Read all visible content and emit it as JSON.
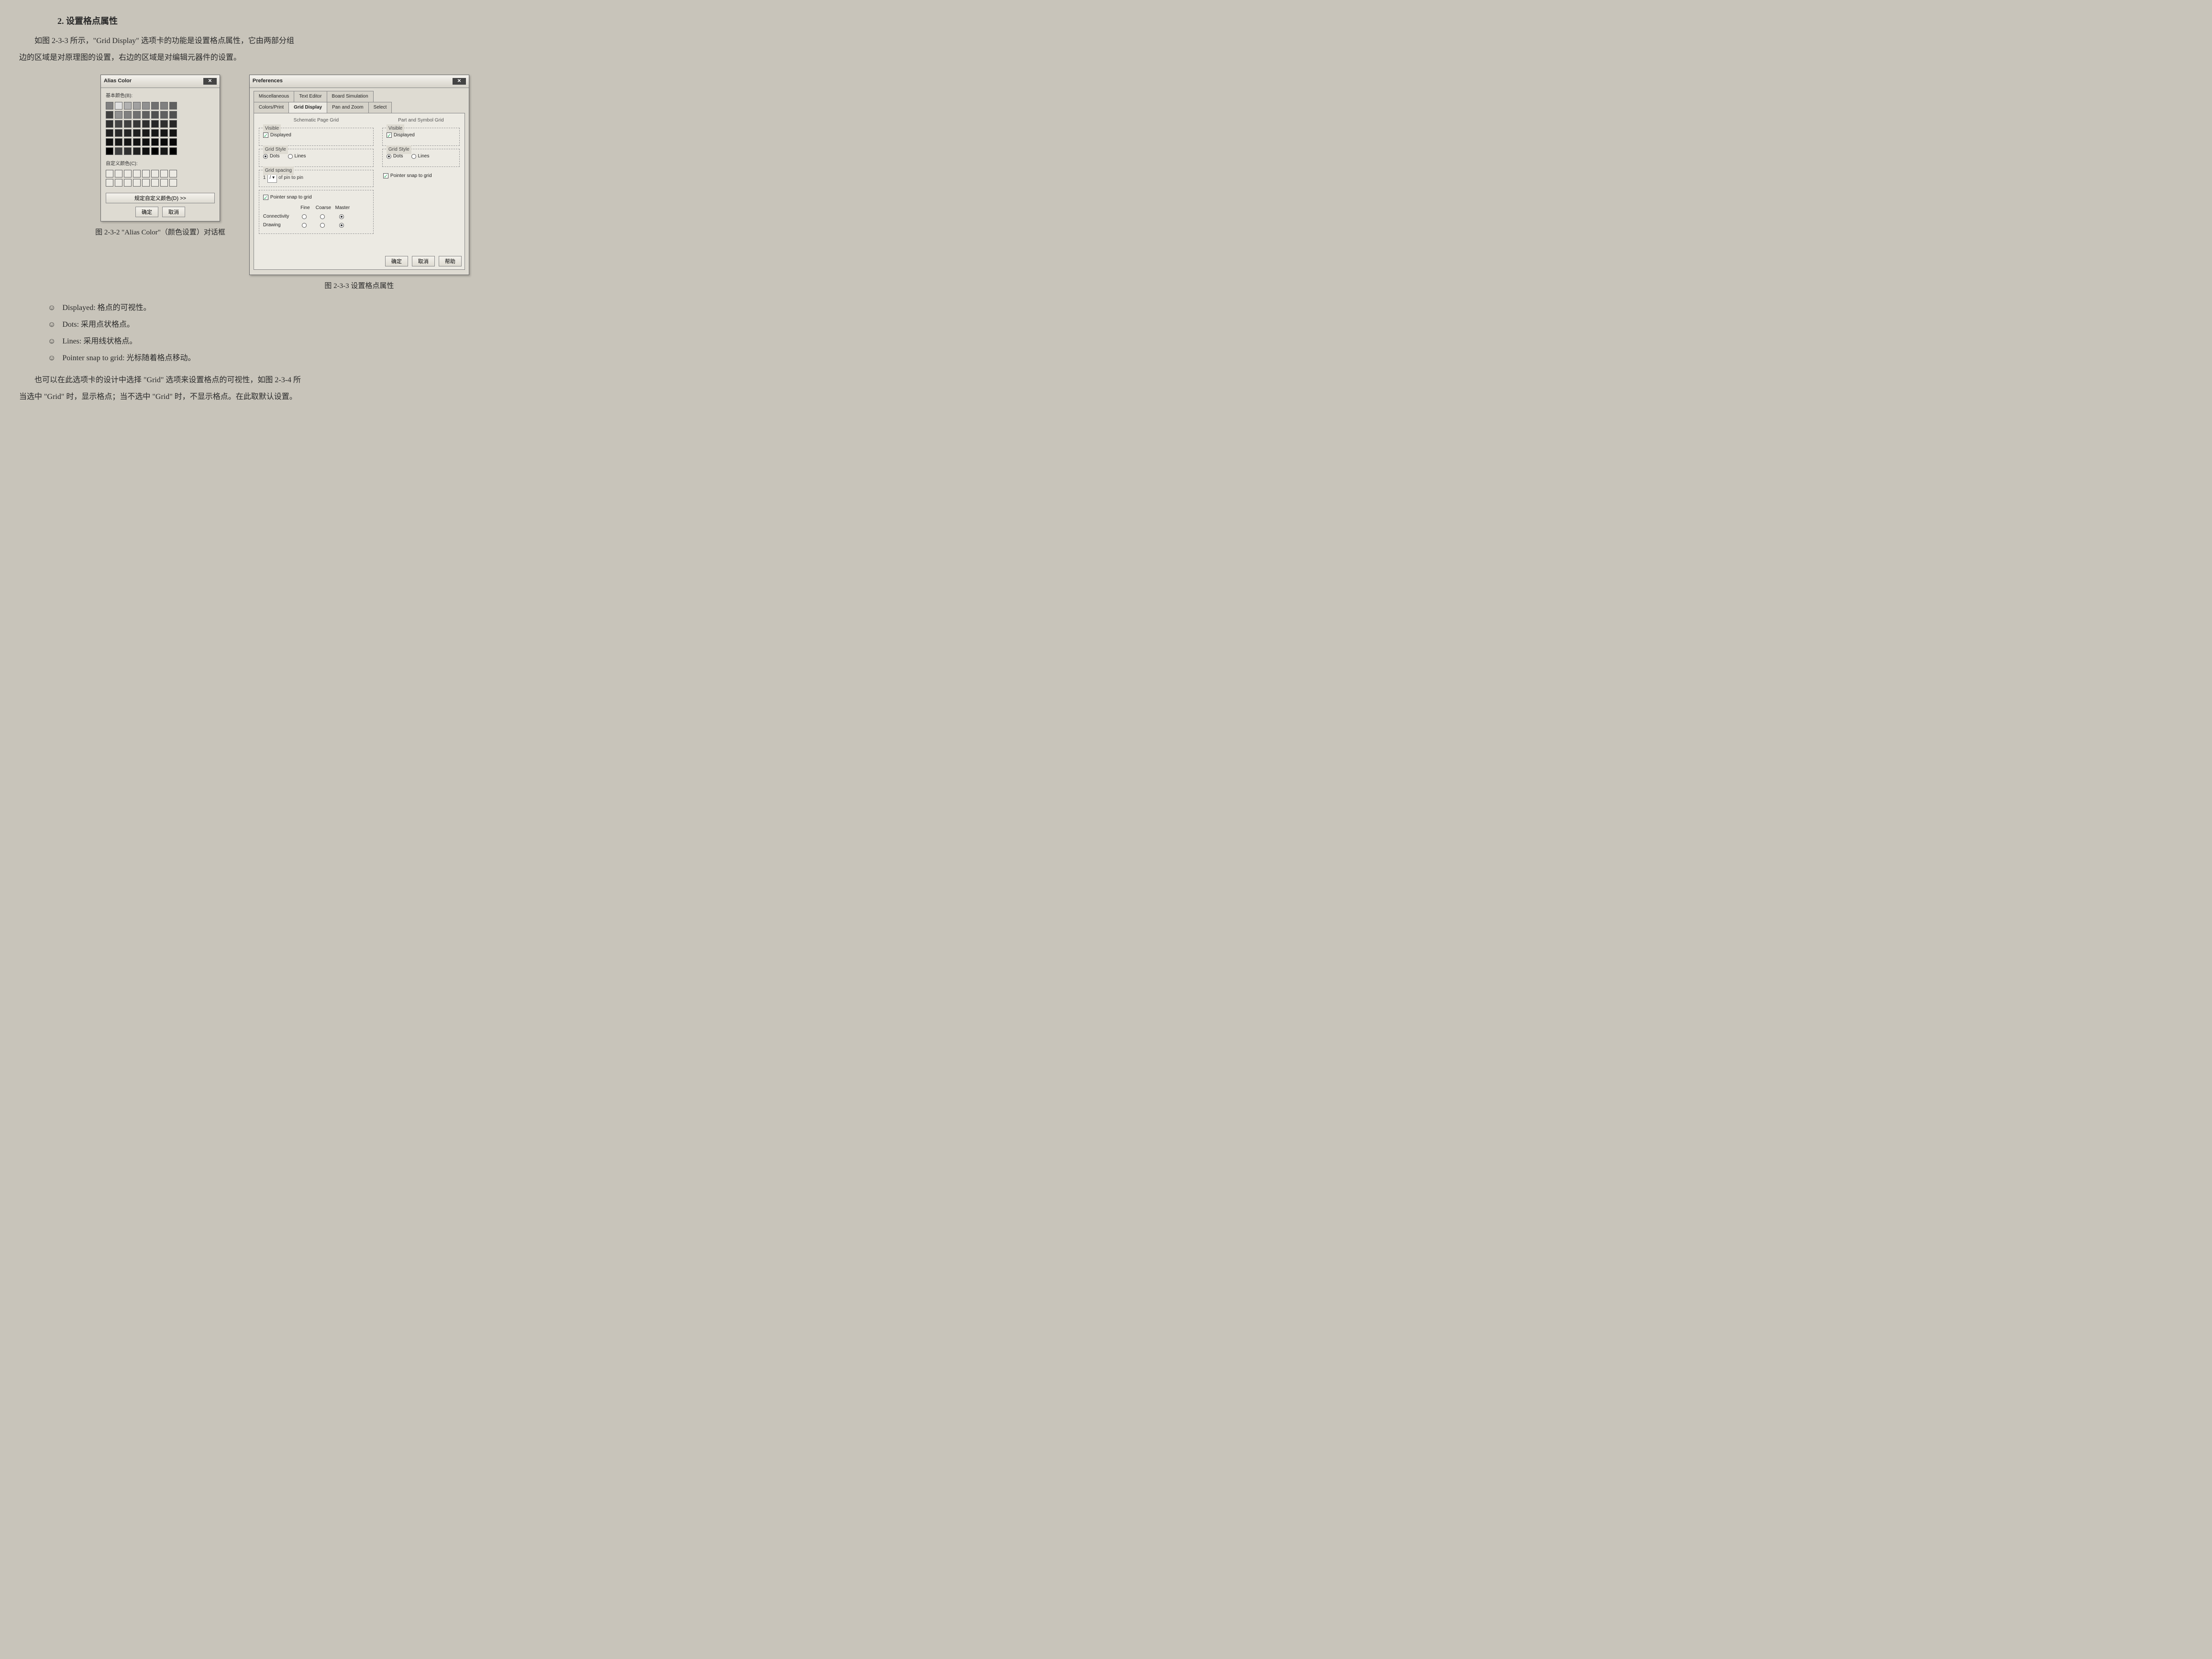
{
  "heading": "2. 设置格点属性",
  "para1": "如图 2-3-3 所示，\"Grid Display\" 选项卡的功能是设置格点属性，它由两部分组",
  "para2": "边的区域是对原理图的设置，右边的区域是对编辑元器件的设置。",
  "dlg1": {
    "title": "Alias Color",
    "section_basic": "基本颜色(B):",
    "section_custom": "自定义颜色(C):",
    "btn_define": "规定自定义颜色(D) >>",
    "btn_ok": "确定",
    "btn_cancel": "取消",
    "basic_colors": [
      [
        "#808080",
        "#e0e0e0",
        "#b0b0b0",
        "#a0a0a0",
        "#909090",
        "#707070",
        "#808080",
        "#606060"
      ],
      [
        "#404040",
        "#909090",
        "#808080",
        "#707070",
        "#606060",
        "#505050",
        "#606060",
        "#505050"
      ],
      [
        "#303030",
        "#454545",
        "#404040",
        "#383838",
        "#303030",
        "#282828",
        "#303030",
        "#282828"
      ],
      [
        "#202020",
        "#2a2a2a",
        "#252525",
        "#202020",
        "#1a1a1a",
        "#181818",
        "#181818",
        "#151515"
      ],
      [
        "#101010",
        "#181818",
        "#151515",
        "#121212",
        "#101010",
        "#0c0c0c",
        "#0a0a0a",
        "#080808"
      ],
      [
        "#000000",
        "#404040",
        "#303030",
        "#202020",
        "#101010",
        "#000000",
        "#181818",
        "#000000"
      ]
    ]
  },
  "dlg2": {
    "title": "Preferences",
    "tabs_top": [
      "Miscellaneous",
      "Text Editor",
      "Board Simulation"
    ],
    "tabs_bot": [
      "Colors/Print",
      "Grid Display",
      "Pan and Zoom",
      "Select"
    ],
    "active_tab": "Grid Display",
    "left_title": "Schematic Page Grid",
    "right_title": "Part and Symbol Grid",
    "grp_visible": "Visible",
    "chk_displayed": "Displayed",
    "grp_style": "Grid Style",
    "opt_dots": "Dots",
    "opt_lines": "Lines",
    "grp_spacing": "Grid spacing",
    "spacing_val": "1",
    "spacing_text": "of pin to pin",
    "chk_snap": "Pointer snap to grid",
    "col_fine": "Fine",
    "col_coarse": "Coarse",
    "col_master": "Master",
    "row_conn": "Connectivity",
    "row_draw": "Drawing",
    "btn_ok": "确定",
    "btn_cancel": "取消",
    "btn_help": "帮助"
  },
  "caption1": "图 2-3-2  \"Alias Color\"（颜色设置）对话框",
  "caption2": "图 2-3-3  设置格点属性",
  "bullets": [
    "Displayed:  格点的可视性。",
    "Dots:  采用点状格点。",
    "Lines:  采用线状格点。",
    "Pointer snap to grid:  光标随着格点移动。"
  ],
  "para3": "也可以在此选项卡的设计中选择 \"Grid\" 选项来设置格点的可视性，如图 2-3-4 所",
  "para4": "当选中 \"Grid\" 时，显示格点；当不选中 \"Grid\" 时，不显示格点。在此取默认设置。"
}
